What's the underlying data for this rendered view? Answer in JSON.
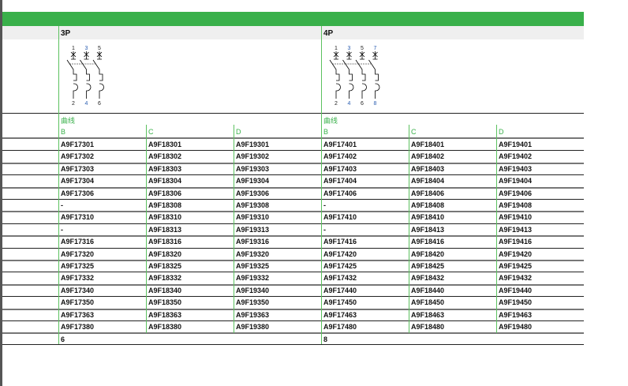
{
  "poles": [
    {
      "label": "3P",
      "terminals_top": [
        "1",
        "3",
        "5"
      ],
      "terminals_bottom": [
        "2",
        "4",
        "6"
      ],
      "footer": "6",
      "rows": [
        [
          "A9F17301",
          "A9F18301",
          "A9F19301"
        ],
        [
          "A9F17302",
          "A9F18302",
          "A9F19302"
        ],
        [
          "A9F17303",
          "A9F18303",
          "A9F19303"
        ],
        [
          "A9F17304",
          "A9F18304",
          "A9F19304"
        ],
        [
          "A9F17306",
          "A9F18306",
          "A9F19306"
        ],
        [
          "-",
          "A9F18308",
          "A9F19308"
        ],
        [
          "A9F17310",
          "A9F18310",
          "A9F19310"
        ],
        [
          "-",
          "A9F18313",
          "A9F19313"
        ],
        [
          "A9F17316",
          "A9F18316",
          "A9F19316"
        ],
        [
          "A9F17320",
          "A9F18320",
          "A9F19320"
        ],
        [
          "A9F17325",
          "A9F18325",
          "A9F19325"
        ],
        [
          "A9F17332",
          "A9F18332",
          "A9F19332"
        ],
        [
          "A9F17340",
          "A9F18340",
          "A9F19340"
        ],
        [
          "A9F17350",
          "A9F18350",
          "A9F19350"
        ],
        [
          "A9F17363",
          "A9F18363",
          "A9F19363"
        ],
        [
          "A9F17380",
          "A9F18380",
          "A9F19380"
        ]
      ]
    },
    {
      "label": "4P",
      "terminals_top": [
        "1",
        "3",
        "5",
        "7"
      ],
      "terminals_bottom": [
        "2",
        "4",
        "6",
        "8"
      ],
      "footer": "8",
      "rows": [
        [
          "A9F17401",
          "A9F18401",
          "A9F19401"
        ],
        [
          "A9F17402",
          "A9F18402",
          "A9F19402"
        ],
        [
          "A9F17403",
          "A9F18403",
          "A9F19403"
        ],
        [
          "A9F17404",
          "A9F18404",
          "A9F19404"
        ],
        [
          "A9F17406",
          "A9F18406",
          "A9F19406"
        ],
        [
          "-",
          "A9F18408",
          "A9F19408"
        ],
        [
          "A9F17410",
          "A9F18410",
          "A9F19410"
        ],
        [
          "-",
          "A9F18413",
          "A9F19413"
        ],
        [
          "A9F17416",
          "A9F18416",
          "A9F19416"
        ],
        [
          "A9F17420",
          "A9F18420",
          "A9F19420"
        ],
        [
          "A9F17425",
          "A9F18425",
          "A9F19425"
        ],
        [
          "A9F17432",
          "A9F18432",
          "A9F19432"
        ],
        [
          "A9F17440",
          "A9F18440",
          "A9F19440"
        ],
        [
          "A9F17450",
          "A9F18450",
          "A9F19450"
        ],
        [
          "A9F17463",
          "A9F18463",
          "A9F19463"
        ],
        [
          "A9F17480",
          "A9F18480",
          "A9F19480"
        ]
      ]
    }
  ],
  "curve_label": "曲线",
  "curves": [
    "B",
    "C",
    "D"
  ],
  "colors": {
    "accent": "#39b04a",
    "header_bg": "#efefef"
  }
}
